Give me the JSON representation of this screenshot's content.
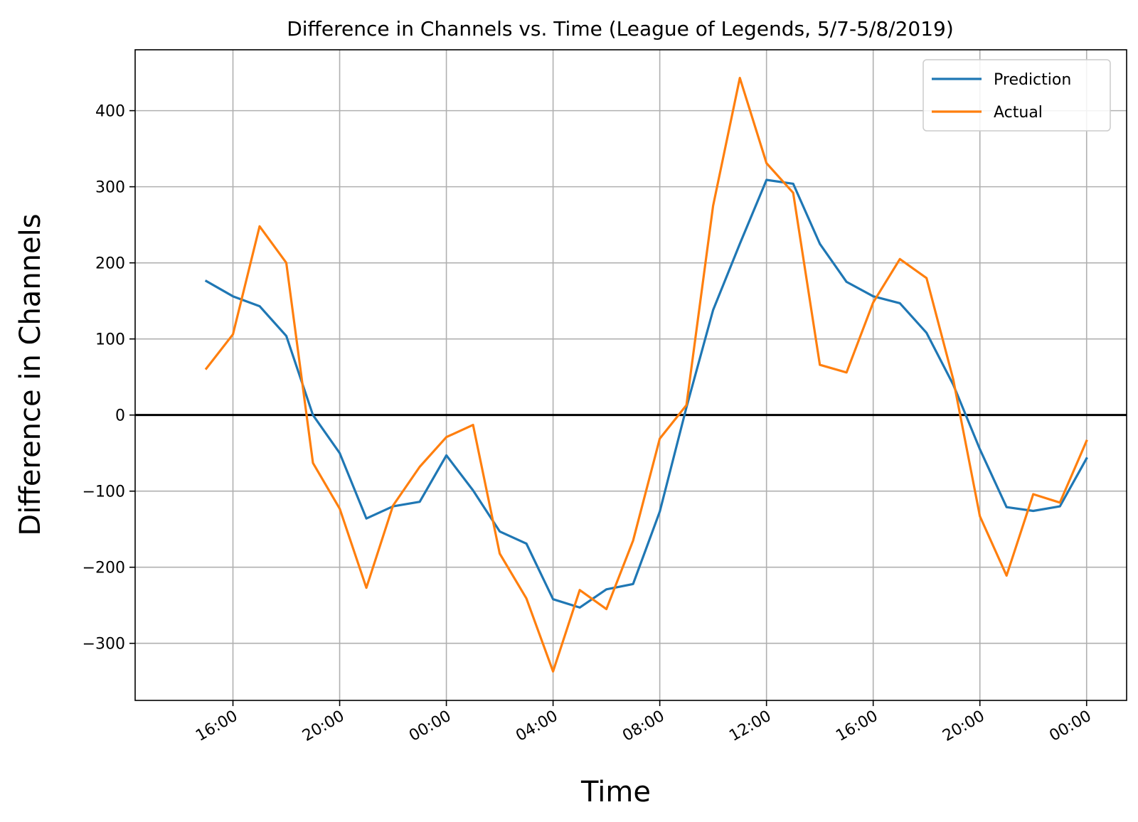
{
  "chart_data": {
    "type": "line",
    "title": "Difference in Channels vs. Time (League of Legends, 5/7-5/8/2019)",
    "xlabel": "Time",
    "ylabel": "Difference in Channels",
    "x": [
      "2019-05-07 15:00",
      "2019-05-07 16:00",
      "2019-05-07 17:00",
      "2019-05-07 18:00",
      "2019-05-07 19:00",
      "2019-05-07 20:00",
      "2019-05-07 21:00",
      "2019-05-07 22:00",
      "2019-05-07 23:00",
      "2019-05-08 00:00",
      "2019-05-08 01:00",
      "2019-05-08 02:00",
      "2019-05-08 03:00",
      "2019-05-08 04:00",
      "2019-05-08 05:00",
      "2019-05-08 06:00",
      "2019-05-08 07:00",
      "2019-05-08 08:00",
      "2019-05-08 09:00",
      "2019-05-08 10:00",
      "2019-05-08 11:00",
      "2019-05-08 12:00",
      "2019-05-08 13:00",
      "2019-05-08 14:00",
      "2019-05-08 15:00",
      "2019-05-08 16:00",
      "2019-05-08 17:00",
      "2019-05-08 18:00",
      "2019-05-08 19:00",
      "2019-05-08 20:00",
      "2019-05-08 21:00",
      "2019-05-08 22:00",
      "2019-05-08 23:00",
      "2019-05-09 00:00"
    ],
    "xlim": [
      "2019-05-07 12:20",
      "2019-05-09 01:30"
    ],
    "xticks": [
      "2019-05-07 16:00",
      "2019-05-07 20:00",
      "2019-05-08 00:00",
      "2019-05-08 04:00",
      "2019-05-08 08:00",
      "2019-05-08 12:00",
      "2019-05-08 16:00",
      "2019-05-08 20:00",
      "2019-05-09 00:00"
    ],
    "xtick_labels": [
      "16:00",
      "20:00",
      "00:00",
      "04:00",
      "08:00",
      "12:00",
      "16:00",
      "20:00",
      "00:00"
    ],
    "ylim": [
      -375,
      480
    ],
    "yticks": [
      -300,
      -200,
      -100,
      0,
      100,
      200,
      300,
      400
    ],
    "ytick_labels": [
      "−300",
      "−200",
      "−100",
      "0",
      "100",
      "200",
      "300",
      "400"
    ],
    "zero_line": true,
    "grid": true,
    "legend_position": "top-right",
    "series": [
      {
        "name": "Prediction",
        "color": "#1f77b4",
        "values": [
          176,
          156,
          143,
          104,
          0,
          -50,
          -136,
          -120,
          -114,
          -53,
          -99,
          -153,
          -169,
          -242,
          -253,
          -229,
          -222,
          -127,
          10,
          138,
          225,
          309,
          304,
          225,
          175,
          156,
          147,
          108,
          40,
          -45,
          -121,
          -126,
          -120,
          -57
        ]
      },
      {
        "name": "Actual",
        "color": "#ff7f0e",
        "values": [
          61,
          106,
          248,
          200,
          -63,
          -123,
          -227,
          -119,
          -68,
          -29,
          -13,
          -182,
          -241,
          -337,
          -230,
          -255,
          -165,
          -31,
          13,
          275,
          443,
          331,
          292,
          66,
          56,
          148,
          205,
          180,
          47,
          -133,
          -211,
          -104,
          -115,
          -34
        ]
      }
    ]
  }
}
